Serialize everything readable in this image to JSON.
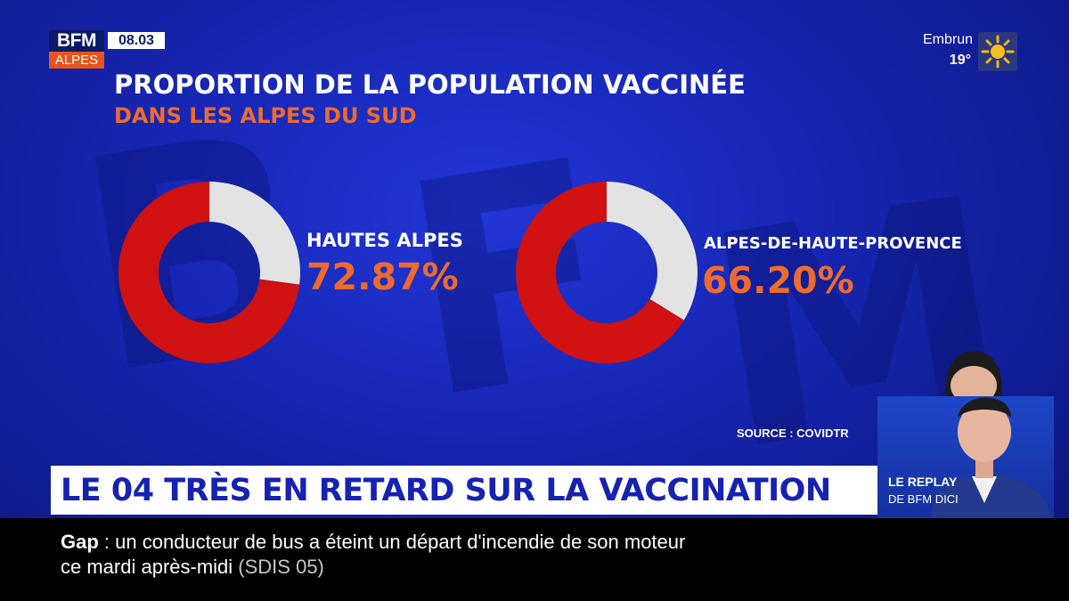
{
  "channel": {
    "logo_top": "BFM",
    "logo_bottom": "ALPES",
    "time": "08.03"
  },
  "weather": {
    "city": "Embrun",
    "temperature": "19°",
    "icon": "sun-icon"
  },
  "chart_data": {
    "type": "pie",
    "title": "PROPORTION DE LA POPULATION VACCINÉE",
    "subtitle": "DANS LES ALPES DU SUD",
    "source": "SOURCE : COVIDTR",
    "colors": {
      "filled": "#cf1111",
      "remainder": "#e3e3e3",
      "value_text": "#ee6a2e"
    },
    "charts": [
      {
        "label": "HAUTES ALPES",
        "value": 72.87,
        "value_label": "72.87%"
      },
      {
        "label": "ALPES-DE-HAUTE-PROVENCE",
        "value": 66.2,
        "value_label": "66.20%"
      }
    ]
  },
  "headline": "LE 04 TRÈS EN RETARD SUR LA VACCINATION",
  "ticker": {
    "place": "Gap",
    "separator": " : ",
    "line1": "un conducteur de bus a éteint un départ d'incendie de son moteur",
    "line2": "ce mardi après-midi",
    "source": "(SDIS 05)"
  },
  "replay": {
    "title": "LE REPLAY",
    "subtitle": "DE BFM DICI"
  }
}
